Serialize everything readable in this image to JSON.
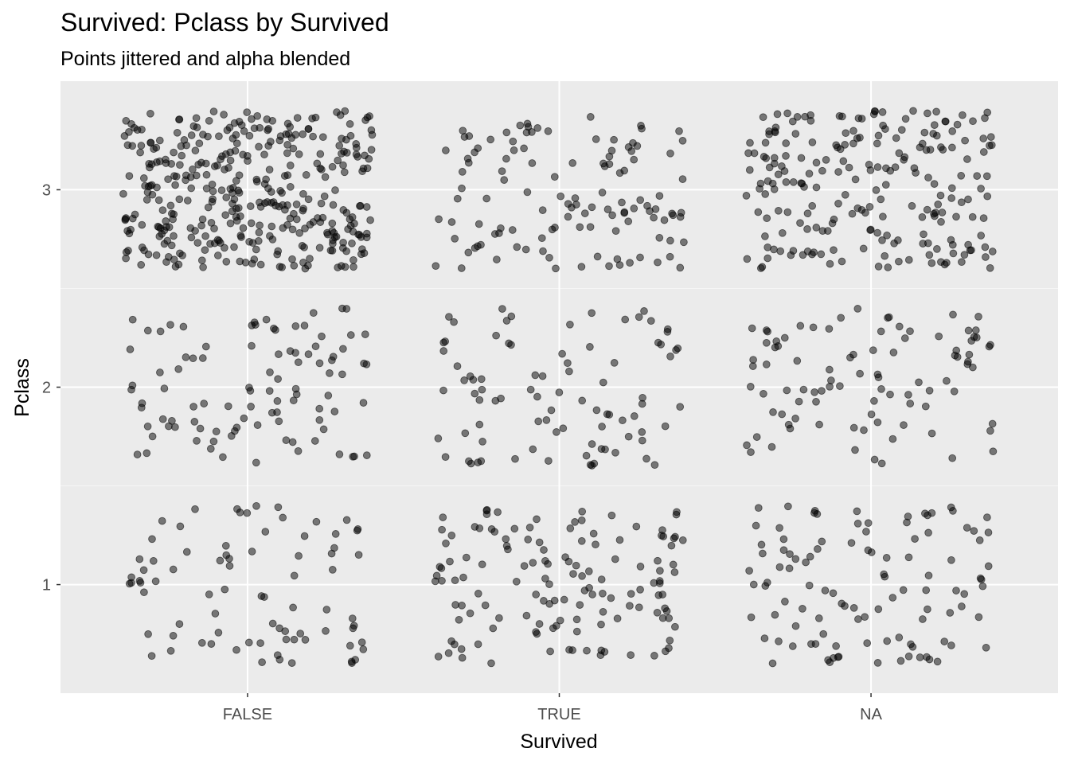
{
  "chart_data": {
    "type": "scatter",
    "title": "Survived: Pclass by Survived",
    "subtitle": "Points jittered and alpha blended",
    "xlabel": "Survived",
    "ylabel": "Pclass",
    "x_categories": [
      "FALSE",
      "TRUE",
      "NA"
    ],
    "y_ticks": [
      1,
      2,
      3
    ],
    "ylim": [
      0.45,
      3.55
    ],
    "jitter": {
      "x": 0.4,
      "y": 0.4
    },
    "point_alpha": 0.5,
    "grid": true,
    "legend": "none",
    "counts": {
      "FALSE": {
        "1": 80,
        "2": 97,
        "3": 372
      },
      "TRUE": {
        "1": 136,
        "2": 87,
        "3": 119
      },
      "NA": {
        "1": 107,
        "2": 93,
        "3": 218
      }
    }
  },
  "colors": {
    "panel_background": "#ebebeb",
    "grid_major": "#ffffff",
    "grid_minor": "#f5f5f5",
    "point": "#000000"
  }
}
